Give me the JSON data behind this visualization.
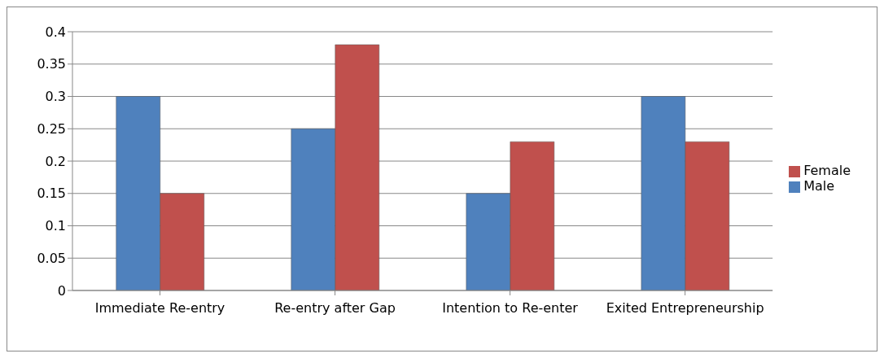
{
  "chart_data": {
    "type": "bar",
    "categories": [
      "Immediate Re-entry",
      "Re-entry after Gap",
      "Intention to Re-enter",
      "Exited Entrepreneurship"
    ],
    "series": [
      {
        "name": "Male",
        "color": "#4f81bd",
        "values": [
          0.3,
          0.25,
          0.15,
          0.3
        ]
      },
      {
        "name": "Female",
        "color": "#c0504d",
        "values": [
          0.15,
          0.38,
          0.23,
          0.23
        ]
      }
    ],
    "ylim": [
      0,
      0.4
    ],
    "yticks": [
      0,
      0.05,
      0.1,
      0.15,
      0.2,
      0.25,
      0.3,
      0.35,
      0.4
    ],
    "grid": "y",
    "legend": "right"
  }
}
